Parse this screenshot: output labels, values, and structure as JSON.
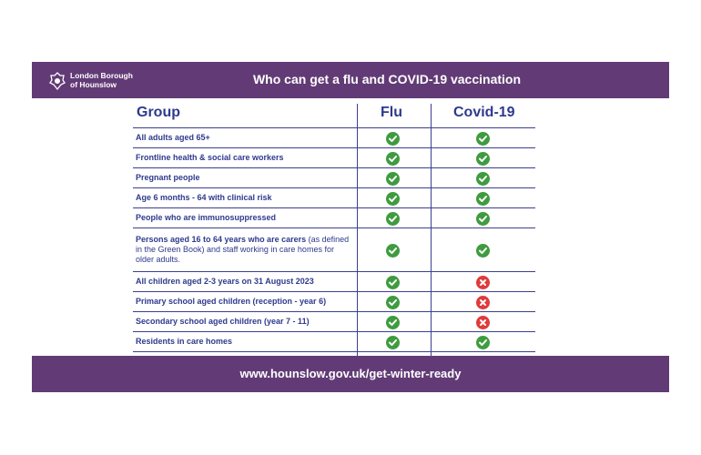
{
  "header": {
    "logo_line1": "London Borough",
    "logo_line2": "of Hounslow",
    "title": "Who can get a flu and COVID-19 vaccination"
  },
  "table": {
    "columns": [
      "Group",
      "Flu",
      "Covid-19"
    ],
    "rows": [
      {
        "label": "All adults aged 65+",
        "flu": "yes",
        "covid": "yes"
      },
      {
        "label": "Frontline health & social care workers",
        "flu": "yes",
        "covid": "yes"
      },
      {
        "label": "Pregnant people",
        "flu": "yes",
        "covid": "yes"
      },
      {
        "label": "Age 6 months - 64 with clinical risk",
        "flu": "yes",
        "covid": "yes"
      },
      {
        "label": "People who are immunosuppressed",
        "flu": "yes",
        "covid": "yes"
      },
      {
        "label": "Persons aged 16 to 64 years who are carers",
        "label_rest": " (as defined in the Green Book) and staff working in care homes for older adults.",
        "flu": "yes",
        "covid": "yes"
      },
      {
        "label": "All children aged 2-3 years on 31 August 2023",
        "flu": "yes",
        "covid": "no"
      },
      {
        "label": "Primary school aged children (reception - year 6)",
        "flu": "yes",
        "covid": "no"
      },
      {
        "label": "Secondary school aged children (year 7 - 11)",
        "flu": "yes",
        "covid": "no"
      },
      {
        "label": "Residents in care homes",
        "flu": "yes",
        "covid": "yes"
      }
    ]
  },
  "footer": {
    "url": "www.hounslow.gov.uk/get-winter-ready"
  },
  "colors": {
    "brand": "#623b76",
    "text": "#2e3a8c",
    "yes": "#3f9b3f",
    "no": "#e03b3b"
  }
}
